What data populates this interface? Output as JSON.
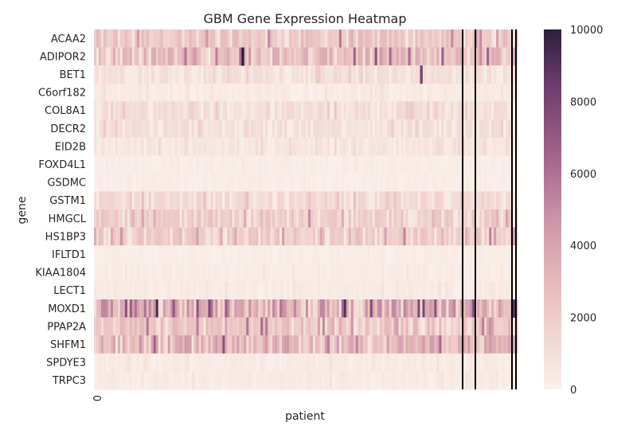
{
  "chart_data": {
    "type": "heatmap",
    "title": "GBM Gene Expression Heatmap",
    "xlabel": "patient",
    "ylabel": "gene",
    "x_tick_labels": [
      "0"
    ],
    "genes": [
      "ACAA2",
      "ADIPOR2",
      "BET1",
      "C6orf182",
      "COL8A1",
      "DECR2",
      "EID2B",
      "FOXD4L1",
      "GSDMC",
      "GSTM1",
      "HMGCL",
      "HS1BP3",
      "IFLTD1",
      "KIAA1804",
      "LECT1",
      "MOXD1",
      "PPAP2A",
      "SHFM1",
      "SPDYE3",
      "TRPC3"
    ],
    "gene_typical_values": [
      2200,
      2800,
      800,
      300,
      900,
      800,
      500,
      150,
      150,
      1100,
      1900,
      2000,
      150,
      200,
      300,
      3800,
      2300,
      3200,
      300,
      300
    ],
    "notable_cells": [
      {
        "gene": "ADIPOR2",
        "value": 10000
      },
      {
        "gene": "BET1",
        "value": 8000
      },
      {
        "gene": "MOXD1",
        "value": 9000
      }
    ],
    "colorbar": {
      "min": 0,
      "max": 10000,
      "tick_labels": [
        "0",
        "2000",
        "4000",
        "6000",
        "8000",
        "10000"
      ],
      "low_color": "#faf0eb",
      "mid_color": "#d6a8b4",
      "high_color": "#2d1e3e"
    },
    "vertical_lines_color": "#000000"
  }
}
